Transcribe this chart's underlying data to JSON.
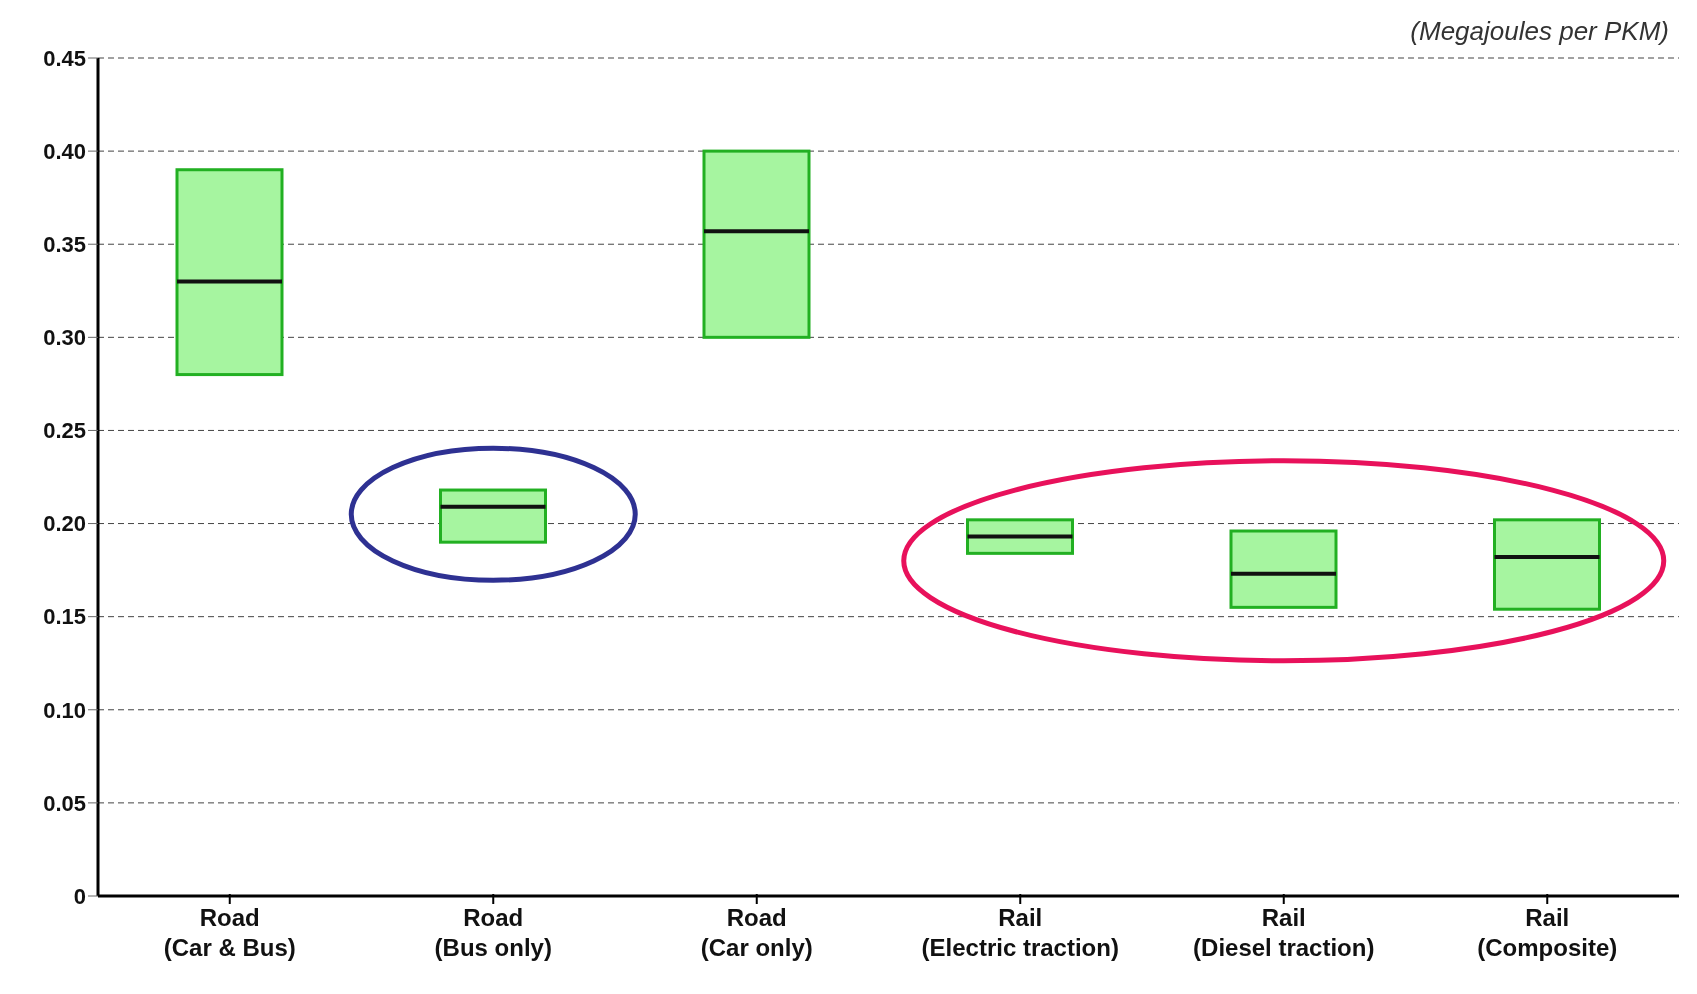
{
  "chart_data": {
    "type": "box",
    "ylabel": "(Megajoules per PKM)",
    "categories": [
      "Road\n(Car & Bus)",
      "Road\n(Bus only)",
      "Road\n(Car only)",
      "Rail\n(Electric traction)",
      "Rail\n(Diesel traction)",
      "Rail\n(Composite)"
    ],
    "boxes": [
      {
        "low": 0.28,
        "q1": 0.28,
        "median": 0.33,
        "q3": 0.39,
        "high": 0.39
      },
      {
        "low": 0.19,
        "q1": 0.19,
        "median": 0.209,
        "q3": 0.218,
        "high": 0.218
      },
      {
        "low": 0.3,
        "q1": 0.3,
        "median": 0.357,
        "q3": 0.4,
        "high": 0.4
      },
      {
        "low": 0.184,
        "q1": 0.184,
        "median": 0.193,
        "q3": 0.202,
        "high": 0.202
      },
      {
        "low": 0.155,
        "q1": 0.155,
        "median": 0.173,
        "q3": 0.196,
        "high": 0.196
      },
      {
        "low": 0.154,
        "q1": 0.154,
        "median": 0.182,
        "q3": 0.202,
        "high": 0.202
      }
    ],
    "color": "#a6f5a0",
    "ylim": [
      0,
      0.45
    ],
    "yticks": [
      0,
      {
        "value": 0.05,
        "label": "0.05"
      },
      {
        "value": 0.1,
        "label": "0.10"
      },
      {
        "value": 0.15,
        "label": "0.15"
      },
      {
        "value": 0.2,
        "label": "0.20"
      },
      {
        "value": 0.25,
        "label": "0.25"
      },
      {
        "value": 0.3,
        "label": "0.30"
      },
      {
        "value": 0.35,
        "label": "0.35"
      },
      {
        "value": 0.4,
        "label": "0.40"
      },
      {
        "value": 0.45,
        "label": "0.45"
      }
    ],
    "grid": "y"
  }
}
